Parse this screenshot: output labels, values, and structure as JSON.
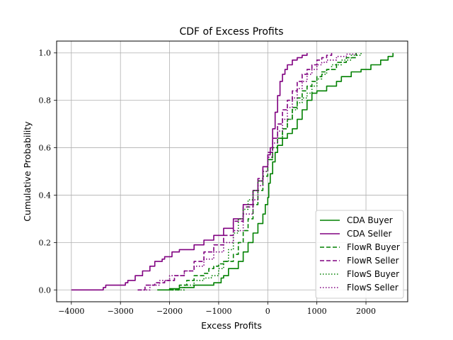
{
  "chart_data": {
    "type": "line",
    "title": "CDF of Excess Profits",
    "xlabel": "Excess Profits",
    "ylabel": "Cumulative Probability",
    "xlim": [
      -4300,
      2850
    ],
    "ylim": [
      -0.05,
      1.05
    ],
    "xticks": [
      -4000,
      -3000,
      -2000,
      -1000,
      0,
      1000,
      2000
    ],
    "xtick_labels": [
      "−4000",
      "−3000",
      "−2000",
      "−1000",
      "0",
      "1000",
      "2000"
    ],
    "yticks": [
      0.0,
      0.2,
      0.4,
      0.6,
      0.8,
      1.0
    ],
    "ytick_labels": [
      "0.0",
      "0.2",
      "0.4",
      "0.6",
      "0.8",
      "1.0"
    ],
    "grid": true,
    "legend_position": "lower-right",
    "series": [
      {
        "name": "CDA Buyer",
        "color": "#008000",
        "dash": "solid",
        "x": [
          -2250,
          -2000,
          -1800,
          -1500,
          -1100,
          -950,
          -900,
          -800,
          -600,
          -500,
          -400,
          -300,
          -200,
          -100,
          -50,
          0,
          20,
          50,
          100,
          150,
          200,
          300,
          400,
          500,
          600,
          700,
          800,
          900,
          1000,
          1200,
          1400,
          1500,
          1700,
          1900,
          2100,
          2300,
          2450,
          2550
        ],
        "y": [
          0.0,
          0.005,
          0.01,
          0.02,
          0.03,
          0.05,
          0.06,
          0.09,
          0.12,
          0.16,
          0.2,
          0.24,
          0.28,
          0.32,
          0.36,
          0.39,
          0.45,
          0.49,
          0.54,
          0.58,
          0.61,
          0.64,
          0.66,
          0.68,
          0.72,
          0.76,
          0.8,
          0.83,
          0.84,
          0.86,
          0.88,
          0.9,
          0.92,
          0.93,
          0.95,
          0.97,
          0.985,
          1.0
        ]
      },
      {
        "name": "CDA Seller",
        "color": "#800080",
        "dash": "solid",
        "x": [
          -4000,
          -3350,
          -3300,
          -2900,
          -2850,
          -2700,
          -2550,
          -2400,
          -2300,
          -2150,
          -2100,
          -1950,
          -1800,
          -1500,
          -1300,
          -1100,
          -900,
          -700,
          -500,
          -300,
          -200,
          -100,
          0,
          50,
          100,
          150,
          200,
          250,
          300,
          350,
          400,
          500,
          600,
          700,
          800
        ],
        "y": [
          0.0,
          0.01,
          0.02,
          0.03,
          0.04,
          0.06,
          0.08,
          0.1,
          0.12,
          0.13,
          0.14,
          0.16,
          0.17,
          0.19,
          0.21,
          0.23,
          0.26,
          0.3,
          0.36,
          0.42,
          0.46,
          0.52,
          0.57,
          0.6,
          0.68,
          0.75,
          0.82,
          0.88,
          0.91,
          0.93,
          0.95,
          0.97,
          0.98,
          0.99,
          1.0
        ]
      },
      {
        "name": "FlowR Buyer",
        "color": "#008000",
        "dash": "6,3",
        "x": [
          -2000,
          -1800,
          -1650,
          -1500,
          -1300,
          -1200,
          -1100,
          -1000,
          -900,
          -700,
          -600,
          -500,
          -400,
          -300,
          -200,
          -100,
          0,
          100,
          200,
          300,
          400,
          500,
          600,
          700,
          800,
          900,
          1000,
          1100,
          1200,
          1400,
          1600,
          1800
        ],
        "y": [
          0.0,
          0.02,
          0.04,
          0.06,
          0.07,
          0.09,
          0.1,
          0.11,
          0.12,
          0.15,
          0.2,
          0.25,
          0.3,
          0.36,
          0.42,
          0.48,
          0.55,
          0.6,
          0.64,
          0.68,
          0.72,
          0.77,
          0.81,
          0.84,
          0.86,
          0.88,
          0.9,
          0.92,
          0.93,
          0.96,
          0.98,
          1.0
        ]
      },
      {
        "name": "FlowR Seller",
        "color": "#800080",
        "dash": "6,3",
        "x": [
          -2650,
          -2500,
          -2300,
          -2100,
          -1900,
          -1700,
          -1500,
          -1300,
          -1100,
          -900,
          -700,
          -500,
          -300,
          -200,
          -100,
          0,
          100,
          200,
          300,
          400,
          500,
          600,
          700,
          800,
          900,
          1000,
          1100,
          1200,
          1300
        ],
        "y": [
          0.0,
          0.02,
          0.03,
          0.04,
          0.06,
          0.08,
          0.12,
          0.16,
          0.19,
          0.23,
          0.29,
          0.35,
          0.42,
          0.47,
          0.52,
          0.58,
          0.64,
          0.7,
          0.76,
          0.8,
          0.84,
          0.88,
          0.91,
          0.93,
          0.95,
          0.97,
          0.98,
          0.99,
          1.0
        ]
      },
      {
        "name": "FlowS Buyer",
        "color": "#008000",
        "dash": "1.5,2.5",
        "x": [
          -1950,
          -1700,
          -1500,
          -1300,
          -1150,
          -1000,
          -900,
          -800,
          -700,
          -600,
          -500,
          -400,
          -300,
          -200,
          -100,
          0,
          100,
          200,
          300,
          400,
          500,
          600,
          700,
          800,
          900,
          1000,
          1100,
          1200,
          1300,
          1500,
          1700,
          1900
        ],
        "y": [
          0.0,
          0.02,
          0.04,
          0.05,
          0.06,
          0.09,
          0.12,
          0.17,
          0.24,
          0.3,
          0.34,
          0.38,
          0.42,
          0.46,
          0.5,
          0.55,
          0.6,
          0.64,
          0.68,
          0.72,
          0.76,
          0.79,
          0.81,
          0.83,
          0.86,
          0.89,
          0.91,
          0.93,
          0.95,
          0.97,
          0.99,
          1.0
        ]
      },
      {
        "name": "FlowS Seller",
        "color": "#800080",
        "dash": "1.5,2.5",
        "x": [
          -2650,
          -2400,
          -2200,
          -2000,
          -1700,
          -1500,
          -1300,
          -1100,
          -900,
          -700,
          -500,
          -300,
          -200,
          -100,
          0,
          100,
          200,
          300,
          400,
          500,
          600,
          700,
          800,
          900,
          1000,
          1100,
          1200,
          1400,
          1600,
          1800
        ],
        "y": [
          0.0,
          0.02,
          0.04,
          0.06,
          0.08,
          0.1,
          0.13,
          0.16,
          0.2,
          0.25,
          0.32,
          0.38,
          0.44,
          0.5,
          0.56,
          0.62,
          0.67,
          0.72,
          0.77,
          0.81,
          0.85,
          0.88,
          0.91,
          0.93,
          0.95,
          0.96,
          0.97,
          0.985,
          0.995,
          1.0
        ]
      }
    ]
  }
}
